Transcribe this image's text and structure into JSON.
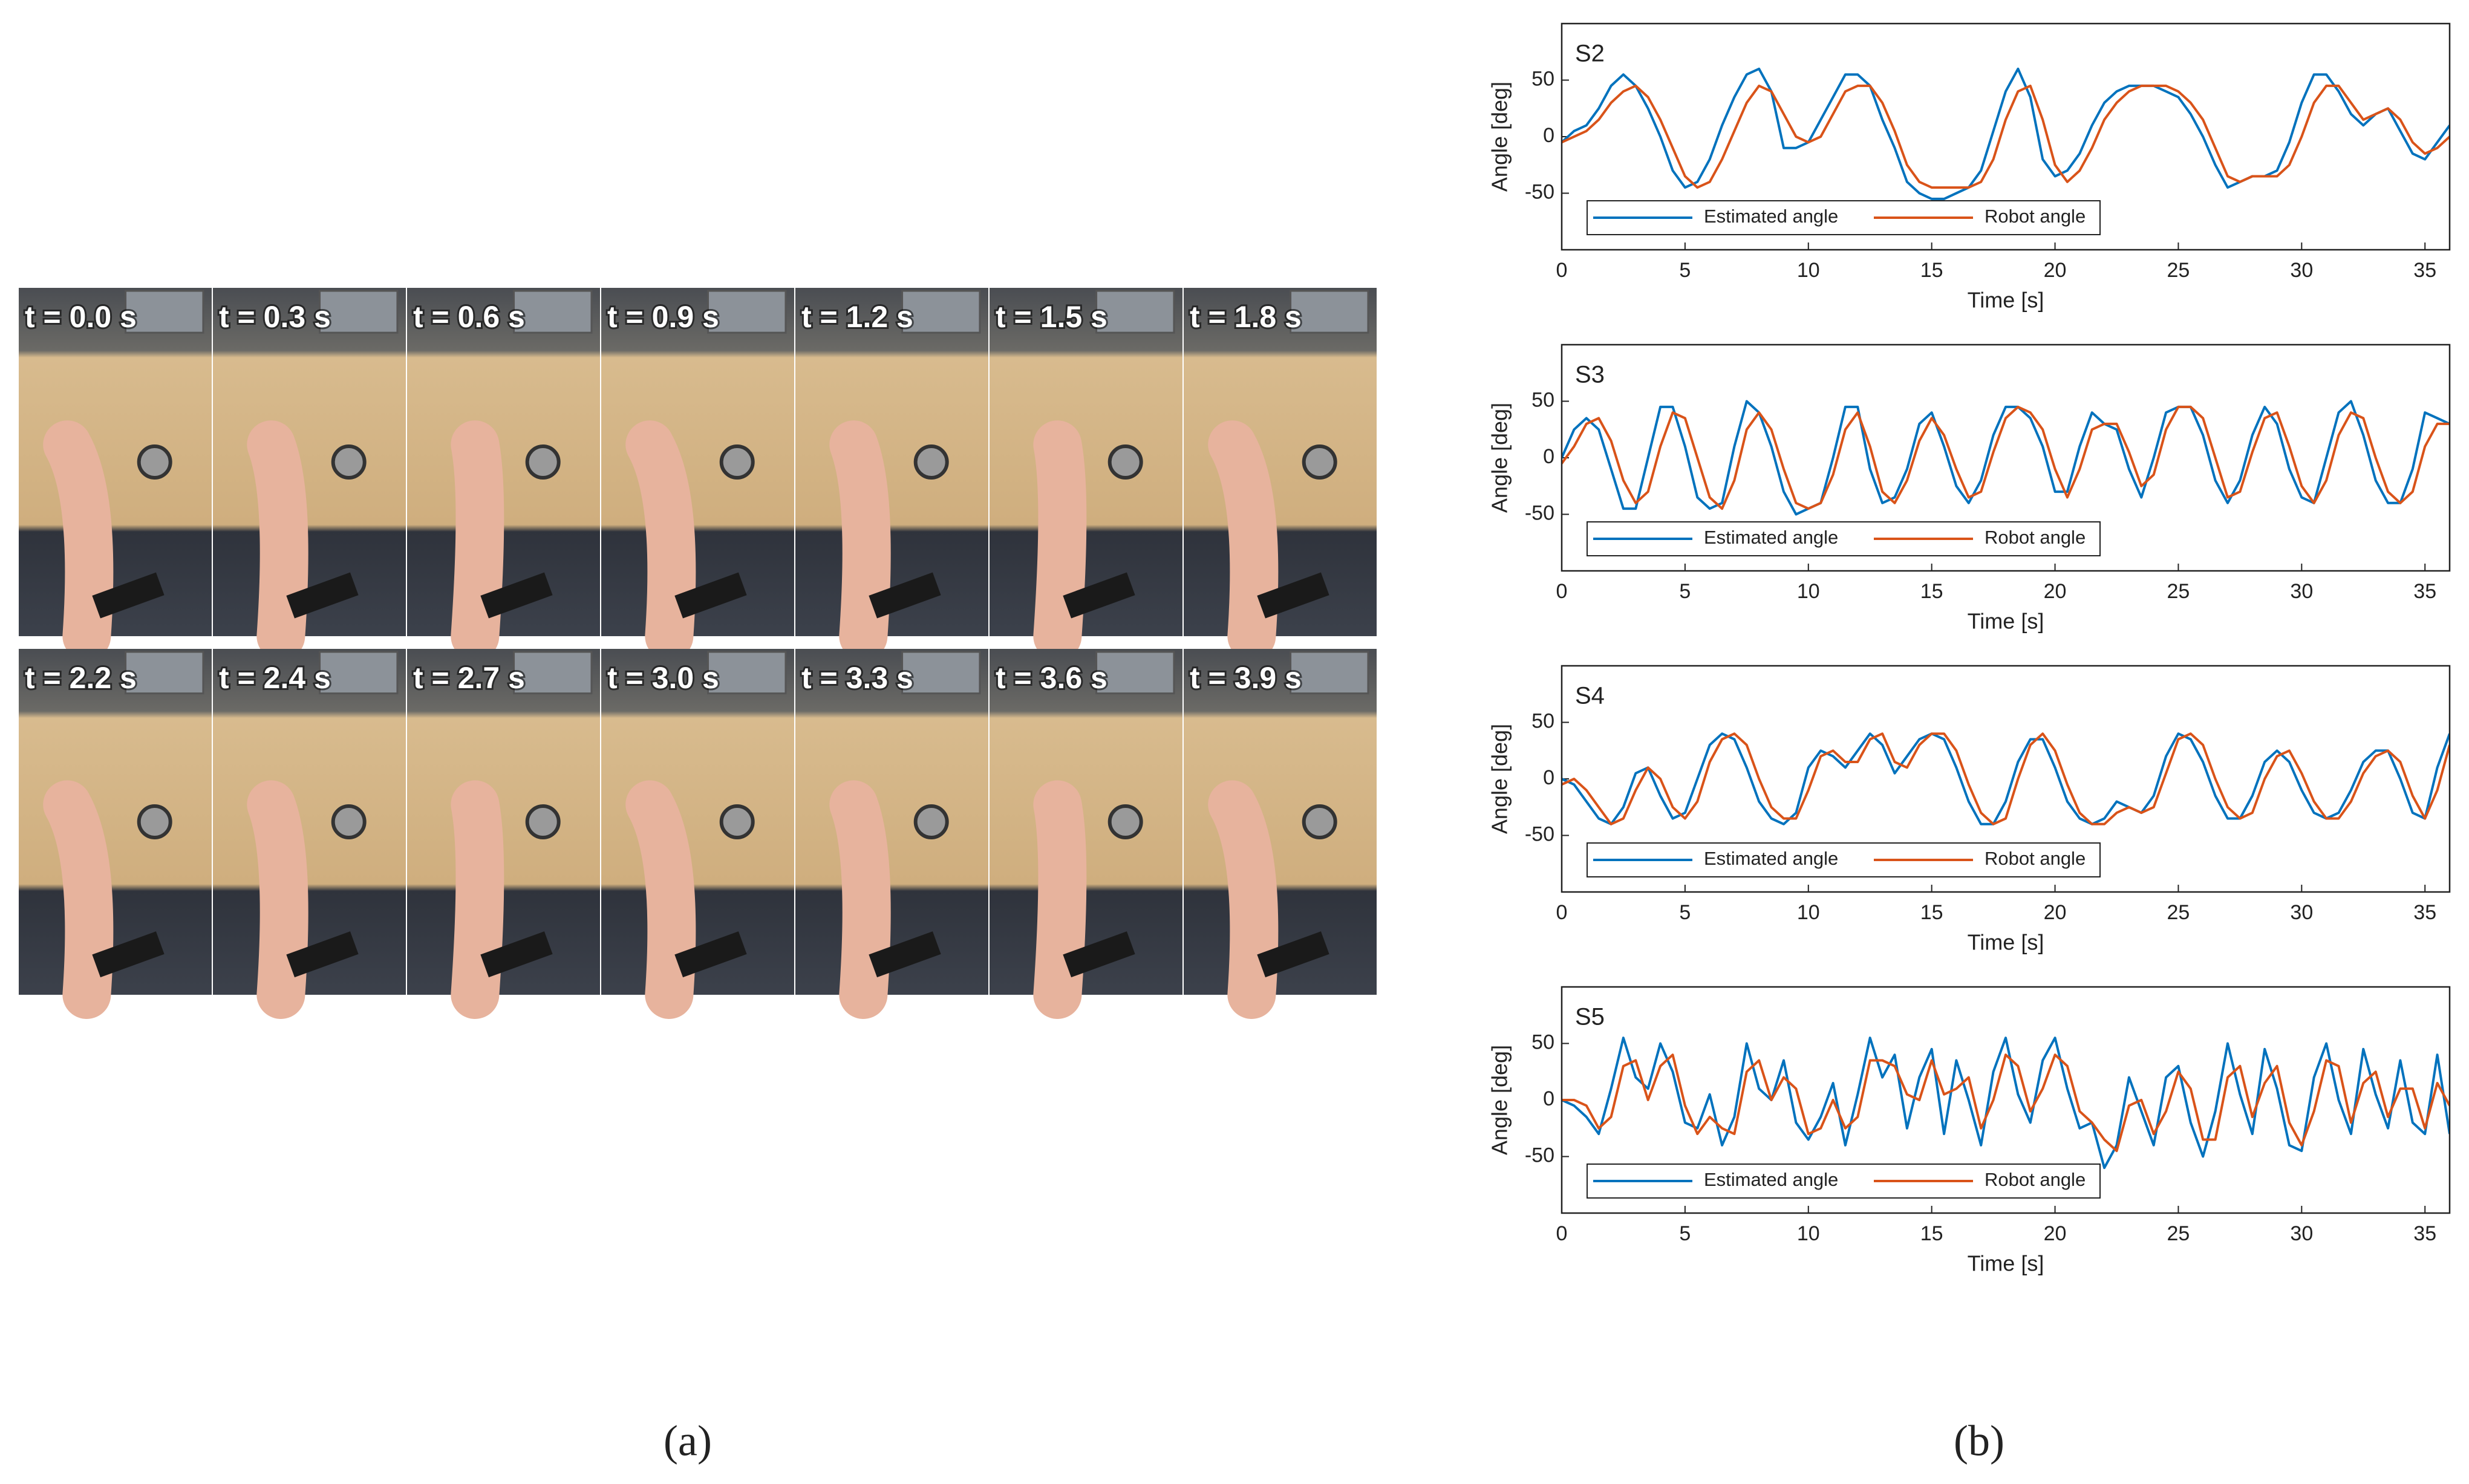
{
  "photos": {
    "labels": [
      "t = 0.0 s",
      "t = 0.3 s",
      "t = 0.6 s",
      "t = 0.9 s",
      "t = 1.2 s",
      "t = 1.5 s",
      "t = 1.8 s",
      "t = 2.2 s",
      "t = 2.4 s",
      "t = 2.7 s",
      "t = 3.0 s",
      "t = 3.3 s",
      "t = 3.6 s",
      "t = 3.9 s"
    ]
  },
  "panel_labels": [
    "(a)",
    "(b)"
  ],
  "chart_data": [
    {
      "type": "line",
      "title": "S2",
      "x_label": "Time [s]",
      "y_label": "Angle [deg]",
      "xlim": [
        0,
        36
      ],
      "ylim": [
        -100,
        100
      ],
      "xticks": [
        0,
        5,
        10,
        15,
        20,
        25,
        30,
        35
      ],
      "yticks": [
        -50,
        0,
        50
      ],
      "legend": "lower left",
      "x": [
        0,
        0.5,
        1,
        1.5,
        2,
        2.5,
        3,
        3.5,
        4,
        4.5,
        5,
        5.5,
        6,
        6.5,
        7,
        7.5,
        8,
        8.5,
        9,
        9.5,
        10,
        10.5,
        11,
        11.5,
        12,
        12.5,
        13,
        13.5,
        14,
        14.5,
        15,
        15.5,
        16,
        16.5,
        17,
        17.5,
        18,
        18.5,
        19,
        19.5,
        20,
        20.5,
        21,
        21.5,
        22,
        22.5,
        23,
        23.5,
        24,
        24.5,
        25,
        25.5,
        26,
        26.5,
        27,
        27.5,
        28,
        28.5,
        29,
        29.5,
        30,
        30.5,
        31,
        31.5,
        32,
        32.5,
        33,
        33.5,
        34,
        34.5,
        35,
        35.5,
        36
      ],
      "series": [
        {
          "name": "Estimated angle",
          "color": "#0072bd",
          "values": [
            -5,
            5,
            10,
            25,
            45,
            55,
            45,
            25,
            0,
            -30,
            -45,
            -40,
            -20,
            10,
            35,
            55,
            60,
            40,
            -10,
            -10,
            -5,
            15,
            35,
            55,
            55,
            45,
            15,
            -10,
            -40,
            -50,
            -55,
            -55,
            -50,
            -45,
            -30,
            5,
            40,
            60,
            35,
            -20,
            -35,
            -30,
            -15,
            10,
            30,
            40,
            45,
            45,
            45,
            40,
            35,
            20,
            0,
            -25,
            -45,
            -40,
            -35,
            -35,
            -30,
            -5,
            30,
            55,
            55,
            40,
            20,
            10,
            20,
            25,
            5,
            -15,
            -20,
            -5,
            10
          ]
        },
        {
          "name": "Robot angle",
          "color": "#d95319",
          "values": [
            -5,
            0,
            5,
            15,
            30,
            40,
            45,
            35,
            15,
            -10,
            -35,
            -45,
            -40,
            -20,
            5,
            30,
            45,
            40,
            20,
            0,
            -5,
            0,
            20,
            40,
            45,
            45,
            30,
            5,
            -25,
            -40,
            -45,
            -45,
            -45,
            -45,
            -40,
            -20,
            15,
            40,
            45,
            15,
            -25,
            -40,
            -30,
            -10,
            15,
            30,
            40,
            45,
            45,
            45,
            40,
            30,
            15,
            -10,
            -35,
            -40,
            -35,
            -35,
            -35,
            -25,
            0,
            30,
            45,
            45,
            30,
            15,
            20,
            25,
            15,
            -5,
            -15,
            -10,
            0
          ]
        }
      ]
    },
    {
      "type": "line",
      "title": "S3",
      "x_label": "Time [s]",
      "y_label": "Angle [deg]",
      "xlim": [
        0,
        36
      ],
      "ylim": [
        -100,
        100
      ],
      "xticks": [
        0,
        5,
        10,
        15,
        20,
        25,
        30,
        35
      ],
      "yticks": [
        -50,
        0,
        50
      ],
      "legend": "lower left",
      "x": [
        0,
        0.5,
        1,
        1.5,
        2,
        2.5,
        3,
        3.5,
        4,
        4.5,
        5,
        5.5,
        6,
        6.5,
        7,
        7.5,
        8,
        8.5,
        9,
        9.5,
        10,
        10.5,
        11,
        11.5,
        12,
        12.5,
        13,
        13.5,
        14,
        14.5,
        15,
        15.5,
        16,
        16.5,
        17,
        17.5,
        18,
        18.5,
        19,
        19.5,
        20,
        20.5,
        21,
        21.5,
        22,
        22.5,
        23,
        23.5,
        24,
        24.5,
        25,
        25.5,
        26,
        26.5,
        27,
        27.5,
        28,
        28.5,
        29,
        29.5,
        30,
        30.5,
        31,
        31.5,
        32,
        32.5,
        33,
        33.5,
        34,
        34.5,
        35,
        35.5,
        36
      ],
      "series": [
        {
          "name": "Estimated angle",
          "color": "#0072bd",
          "values": [
            0,
            25,
            35,
            25,
            -10,
            -45,
            -45,
            0,
            45,
            45,
            10,
            -35,
            -45,
            -40,
            10,
            50,
            40,
            10,
            -30,
            -50,
            -45,
            -40,
            0,
            45,
            45,
            -10,
            -40,
            -35,
            -10,
            30,
            40,
            10,
            -25,
            -40,
            -20,
            20,
            45,
            45,
            35,
            10,
            -30,
            -30,
            10,
            40,
            30,
            25,
            -10,
            -35,
            0,
            40,
            45,
            45,
            20,
            -20,
            -40,
            -20,
            20,
            45,
            30,
            -10,
            -35,
            -40,
            0,
            40,
            50,
            20,
            -20,
            -40,
            -40,
            -10,
            40,
            35,
            30
          ]
        },
        {
          "name": "Robot angle",
          "color": "#d95319",
          "values": [
            -5,
            10,
            30,
            35,
            15,
            -20,
            -40,
            -30,
            10,
            40,
            35,
            0,
            -35,
            -45,
            -20,
            25,
            40,
            25,
            -10,
            -40,
            -45,
            -40,
            -15,
            25,
            40,
            10,
            -30,
            -40,
            -20,
            15,
            35,
            20,
            -10,
            -35,
            -30,
            5,
            35,
            45,
            40,
            25,
            -10,
            -35,
            -10,
            25,
            30,
            30,
            5,
            -25,
            -15,
            25,
            45,
            45,
            35,
            0,
            -35,
            -30,
            5,
            35,
            40,
            10,
            -25,
            -40,
            -20,
            20,
            40,
            35,
            0,
            -30,
            -40,
            -30,
            10,
            30,
            30
          ]
        }
      ]
    },
    {
      "type": "line",
      "title": "S4",
      "x_label": "Time [s]",
      "y_label": "Angle [deg]",
      "xlim": [
        0,
        36
      ],
      "ylim": [
        -100,
        100
      ],
      "xticks": [
        0,
        5,
        10,
        15,
        20,
        25,
        30,
        35
      ],
      "yticks": [
        -50,
        0,
        50
      ],
      "legend": "lower left",
      "x": [
        0,
        0.5,
        1,
        1.5,
        2,
        2.5,
        3,
        3.5,
        4,
        4.5,
        5,
        5.5,
        6,
        6.5,
        7,
        7.5,
        8,
        8.5,
        9,
        9.5,
        10,
        10.5,
        11,
        11.5,
        12,
        12.5,
        13,
        13.5,
        14,
        14.5,
        15,
        15.5,
        16,
        16.5,
        17,
        17.5,
        18,
        18.5,
        19,
        19.5,
        20,
        20.5,
        21,
        21.5,
        22,
        22.5,
        23,
        23.5,
        24,
        24.5,
        25,
        25.5,
        26,
        26.5,
        27,
        27.5,
        28,
        28.5,
        29,
        29.5,
        30,
        30.5,
        31,
        31.5,
        32,
        32.5,
        33,
        33.5,
        34,
        34.5,
        35,
        35.5,
        36
      ],
      "series": [
        {
          "name": "Estimated angle",
          "color": "#0072bd",
          "values": [
            0,
            -5,
            -20,
            -35,
            -40,
            -25,
            5,
            10,
            -15,
            -35,
            -30,
            0,
            30,
            40,
            35,
            10,
            -20,
            -35,
            -40,
            -30,
            10,
            25,
            20,
            10,
            25,
            40,
            30,
            5,
            20,
            35,
            40,
            35,
            10,
            -20,
            -40,
            -40,
            -20,
            15,
            35,
            35,
            10,
            -20,
            -35,
            -40,
            -35,
            -20,
            -25,
            -30,
            -15,
            20,
            40,
            35,
            15,
            -15,
            -35,
            -35,
            -15,
            15,
            25,
            15,
            -10,
            -30,
            -35,
            -30,
            -10,
            15,
            25,
            25,
            0,
            -30,
            -35,
            10,
            40
          ]
        },
        {
          "name": "Robot angle",
          "color": "#d95319",
          "values": [
            -5,
            0,
            -10,
            -25,
            -40,
            -35,
            -10,
            10,
            0,
            -25,
            -35,
            -20,
            15,
            35,
            40,
            30,
            0,
            -25,
            -35,
            -35,
            -10,
            20,
            25,
            15,
            15,
            35,
            40,
            15,
            10,
            30,
            40,
            40,
            25,
            -5,
            -30,
            -40,
            -35,
            0,
            30,
            40,
            25,
            -5,
            -30,
            -40,
            -40,
            -30,
            -25,
            -30,
            -25,
            5,
            35,
            40,
            30,
            0,
            -25,
            -35,
            -30,
            0,
            20,
            25,
            5,
            -20,
            -35,
            -35,
            -20,
            5,
            20,
            25,
            15,
            -15,
            -35,
            -10,
            30
          ]
        }
      ]
    },
    {
      "type": "line",
      "title": "S5",
      "x_label": "Time [s]",
      "y_label": "Angle [deg]",
      "xlim": [
        0,
        36
      ],
      "ylim": [
        -100,
        100
      ],
      "xticks": [
        0,
        5,
        10,
        15,
        20,
        25,
        30,
        35
      ],
      "yticks": [
        -50,
        0,
        50
      ],
      "legend": "lower left",
      "x": [
        0,
        0.5,
        1,
        1.5,
        2,
        2.5,
        3,
        3.5,
        4,
        4.5,
        5,
        5.5,
        6,
        6.5,
        7,
        7.5,
        8,
        8.5,
        9,
        9.5,
        10,
        10.5,
        11,
        11.5,
        12,
        12.5,
        13,
        13.5,
        14,
        14.5,
        15,
        15.5,
        16,
        16.5,
        17,
        17.5,
        18,
        18.5,
        19,
        19.5,
        20,
        20.5,
        21,
        21.5,
        22,
        22.5,
        23,
        23.5,
        24,
        24.5,
        25,
        25.5,
        26,
        26.5,
        27,
        27.5,
        28,
        28.5,
        29,
        29.5,
        30,
        30.5,
        31,
        31.5,
        32,
        32.5,
        33,
        33.5,
        34,
        34.5,
        35,
        35.5,
        36
      ],
      "series": [
        {
          "name": "Estimated angle",
          "color": "#0072bd",
          "values": [
            0,
            -5,
            -15,
            -30,
            10,
            55,
            20,
            10,
            50,
            25,
            -20,
            -25,
            5,
            -40,
            -15,
            50,
            10,
            0,
            35,
            -20,
            -35,
            -15,
            15,
            -40,
            5,
            55,
            20,
            40,
            -25,
            20,
            45,
            -30,
            35,
            0,
            -40,
            25,
            55,
            5,
            -20,
            35,
            55,
            10,
            -25,
            -20,
            -60,
            -40,
            20,
            -10,
            -40,
            20,
            30,
            -20,
            -50,
            -10,
            50,
            5,
            -30,
            45,
            10,
            -40,
            -45,
            20,
            50,
            0,
            -30,
            45,
            5,
            -25,
            35,
            -20,
            -30,
            40,
            -30
          ]
        },
        {
          "name": "Robot angle",
          "color": "#d95319",
          "values": [
            0,
            0,
            -5,
            -25,
            -15,
            30,
            35,
            0,
            30,
            40,
            -5,
            -30,
            -15,
            -25,
            -30,
            25,
            35,
            0,
            20,
            10,
            -30,
            -25,
            0,
            -25,
            -15,
            35,
            35,
            30,
            5,
            0,
            35,
            5,
            10,
            20,
            -25,
            0,
            40,
            30,
            -10,
            10,
            40,
            30,
            -10,
            -20,
            -35,
            -45,
            -5,
            0,
            -30,
            -10,
            25,
            10,
            -35,
            -35,
            20,
            30,
            -15,
            15,
            30,
            -20,
            -40,
            -10,
            35,
            30,
            -20,
            15,
            25,
            -15,
            10,
            10,
            -25,
            15,
            -5
          ]
        }
      ]
    }
  ]
}
